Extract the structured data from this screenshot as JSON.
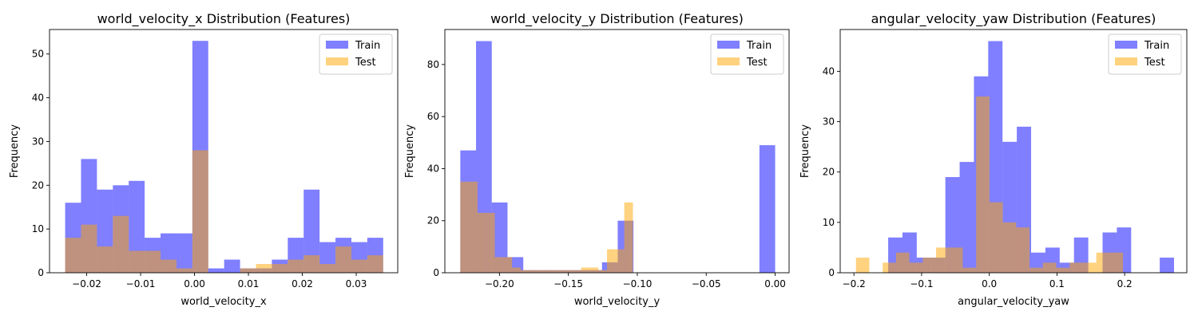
{
  "chart_data": [
    {
      "type": "histogram",
      "title": "world_velocity_x Distribution (Features)",
      "xlabel": "world_velocity_x",
      "ylabel": "Frequency",
      "xlim": [
        -0.0269,
        0.0377
      ],
      "ylim": [
        0,
        55.6
      ],
      "xticks": [
        -0.02,
        -0.01,
        0.0,
        0.01,
        0.02,
        0.03
      ],
      "xtick_labels": [
        "−0.02",
        "−0.01",
        "0.00",
        "0.01",
        "0.02",
        "0.03"
      ],
      "yticks": [
        0,
        10,
        20,
        30,
        40,
        50
      ],
      "ytick_labels": [
        "0",
        "10",
        "20",
        "30",
        "40",
        "50"
      ],
      "legend_position": "top-right",
      "grid": false,
      "series": [
        {
          "name": "Train",
          "color": "#0000ff",
          "alpha": 0.5,
          "bin_start": -0.024,
          "bin_width": 0.00295,
          "values": [
            16,
            26,
            19,
            20,
            21,
            8,
            9,
            9,
            53,
            1,
            3,
            1,
            1,
            3,
            8,
            19,
            7,
            8,
            7,
            8
          ]
        },
        {
          "name": "Test",
          "color": "#ffa500",
          "alpha": 0.5,
          "bin_start": -0.024,
          "bin_width": 0.00295,
          "values": [
            8,
            11,
            6,
            13,
            5,
            5,
            3,
            1,
            28,
            0,
            0,
            1,
            2,
            2,
            3,
            4,
            2,
            6,
            3,
            4
          ]
        }
      ]
    },
    {
      "type": "histogram",
      "title": "world_velocity_y Distribution (Features)",
      "xlabel": "world_velocity_y",
      "ylabel": "Frequency",
      "xlim": [
        -0.2396,
        0.0101
      ],
      "ylim": [
        0,
        93.45
      ],
      "xticks": [
        -0.2,
        -0.15,
        -0.1,
        -0.05,
        0.0
      ],
      "xtick_labels": [
        "−0.20",
        "−0.15",
        "−0.10",
        "−0.05",
        "0.00"
      ],
      "yticks": [
        0,
        20,
        40,
        60,
        80
      ],
      "ytick_labels": [
        "0",
        "20",
        "40",
        "60",
        "80"
      ],
      "legend_position": "top-right",
      "grid": false,
      "series": [
        {
          "name": "Train",
          "color": "#0000ff",
          "alpha": 0.5,
          "bin_start": -0.2284,
          "bin_width": 0.01142,
          "values": [
            47,
            89,
            27,
            6,
            1,
            1,
            1,
            1,
            1,
            4,
            20,
            0,
            0,
            0,
            0,
            0,
            0,
            0,
            0,
            49
          ]
        },
        {
          "name": "Test",
          "color": "#ffa500",
          "alpha": 0.5,
          "bin_start": -0.2284,
          "bin_width": 0.00626,
          "values": [
            35,
            35,
            23,
            23,
            6,
            6,
            2,
            1,
            1,
            1,
            1,
            1,
            1,
            1,
            2,
            2,
            1,
            9,
            9,
            27
          ]
        }
      ]
    },
    {
      "type": "histogram",
      "title": "angular_velocity_yaw Distribution (Features)",
      "xlabel": "angular_velocity_yaw",
      "ylabel": "Frequency",
      "xlim": [
        -0.2203,
        0.2919
      ],
      "ylim": [
        0,
        48.3
      ],
      "xticks": [
        -0.2,
        -0.1,
        0.0,
        0.1,
        0.2
      ],
      "xtick_labels": [
        "−0.2",
        "−0.1",
        "0.0",
        "0.1",
        "0.2"
      ],
      "yticks": [
        0,
        10,
        20,
        30,
        40
      ],
      "ytick_labels": [
        "0",
        "10",
        "20",
        "30",
        "40"
      ],
      "legend_position": "top-right",
      "grid": false,
      "series": [
        {
          "name": "Train",
          "color": "#0000ff",
          "alpha": 0.5,
          "bin_start": -0.1494,
          "bin_width": 0.02112,
          "values": [
            7,
            8,
            3,
            3,
            19,
            22,
            39,
            46,
            26,
            29,
            4,
            5,
            2,
            7,
            0,
            8,
            9,
            0,
            0,
            3
          ]
        },
        {
          "name": "Test",
          "color": "#ffa500",
          "alpha": 0.5,
          "bin_start": -0.197,
          "bin_width": 0.01973,
          "values": [
            3,
            0,
            2,
            4,
            2,
            3,
            5,
            5,
            1,
            35,
            14,
            10,
            9,
            1,
            2,
            1,
            2,
            2,
            4,
            4
          ]
        }
      ]
    }
  ]
}
